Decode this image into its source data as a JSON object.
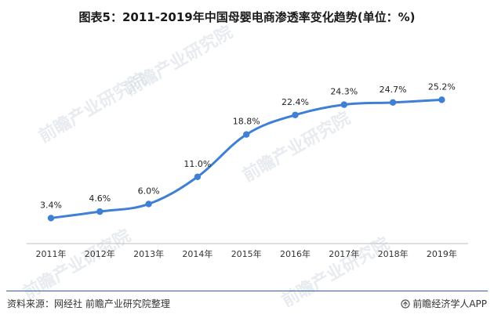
{
  "title": "图表5：2011-2019年中国母婴电商渗透率变化趋势(单位：%)",
  "footer": {
    "source": "资料来源：网经社 前瞻产业研究院整理",
    "brand": "前瞻经济学人APP"
  },
  "watermark_text": "前瞻产业研究院",
  "colors": {
    "line": "#3f7fd6",
    "marker": "#3f7fd6",
    "rule": "#2b5fab"
  },
  "chart_data": {
    "type": "line",
    "title": "图表5：2011-2019年中国母婴电商渗透率变化趋势(单位：%)",
    "xlabel": "",
    "ylabel": "",
    "categories": [
      "2011年",
      "2012年",
      "2013年",
      "2014年",
      "2015年",
      "2016年",
      "2017年",
      "2018年",
      "2019年"
    ],
    "series": [
      {
        "values": [
          3.4,
          4.6,
          6.0,
          11.0,
          18.8,
          22.4,
          24.3,
          24.7,
          25.2
        ],
        "labels": [
          "3.4%",
          "4.6%",
          "6.0%",
          "11.0%",
          "18.8%",
          "22.4%",
          "24.3%",
          "24.7%",
          "25.2%"
        ]
      }
    ],
    "ylim": [
      0,
      30
    ],
    "grid": false,
    "legend": "none"
  }
}
